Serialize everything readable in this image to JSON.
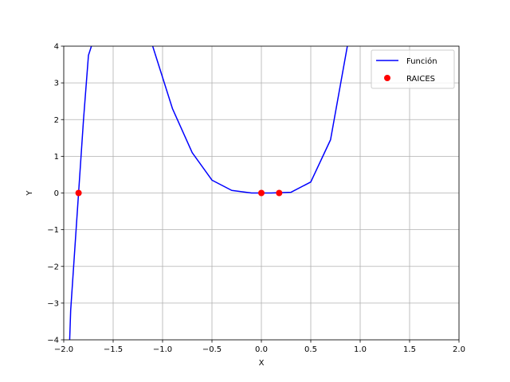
{
  "chart_data": {
    "type": "line",
    "title": "",
    "xlabel": "X",
    "ylabel": "Y",
    "xlim": [
      -2.0,
      2.0
    ],
    "ylim": [
      -4,
      4
    ],
    "xticks": [
      -2.0,
      -1.5,
      -1.0,
      -0.5,
      0.0,
      0.5,
      1.0,
      1.5,
      2.0
    ],
    "xtick_labels": [
      "−2.0",
      "−1.5",
      "−1.0",
      "−0.5",
      "0.0",
      "0.5",
      "1.0",
      "1.5",
      "2.0"
    ],
    "yticks": [
      -4,
      -3,
      -2,
      -1,
      0,
      1,
      2,
      3,
      4
    ],
    "ytick_labels": [
      "−4",
      "−3",
      "−2",
      "−1",
      "0",
      "1",
      "2",
      "3",
      "4"
    ],
    "grid": true,
    "legend_position": "top-right",
    "series": [
      {
        "name": "Función",
        "kind": "line",
        "color": "#0000ff",
        "x": [
          -1.95,
          -1.94,
          -1.93,
          -1.9,
          -1.85,
          -1.8,
          -1.75,
          -1.72,
          -1.7,
          -1.15,
          -1.1,
          -0.9,
          -0.7,
          -0.5,
          -0.3,
          -0.1,
          0.1,
          0.3,
          0.5,
          0.7,
          0.87
        ],
        "y": [
          -4.5,
          -4.0,
          -3.2,
          -2.0,
          0.0,
          2.0,
          3.75,
          4.0,
          4.3,
          4.2,
          4.0,
          2.3,
          1.1,
          0.35,
          0.07,
          0.0,
          0.0,
          0.02,
          0.3,
          1.45,
          4.0
        ]
      },
      {
        "name": "RAICES",
        "kind": "scatter",
        "color": "#ff0000",
        "x": [
          -1.85,
          0.0,
          0.18
        ],
        "y": [
          0,
          0,
          0
        ]
      }
    ]
  }
}
